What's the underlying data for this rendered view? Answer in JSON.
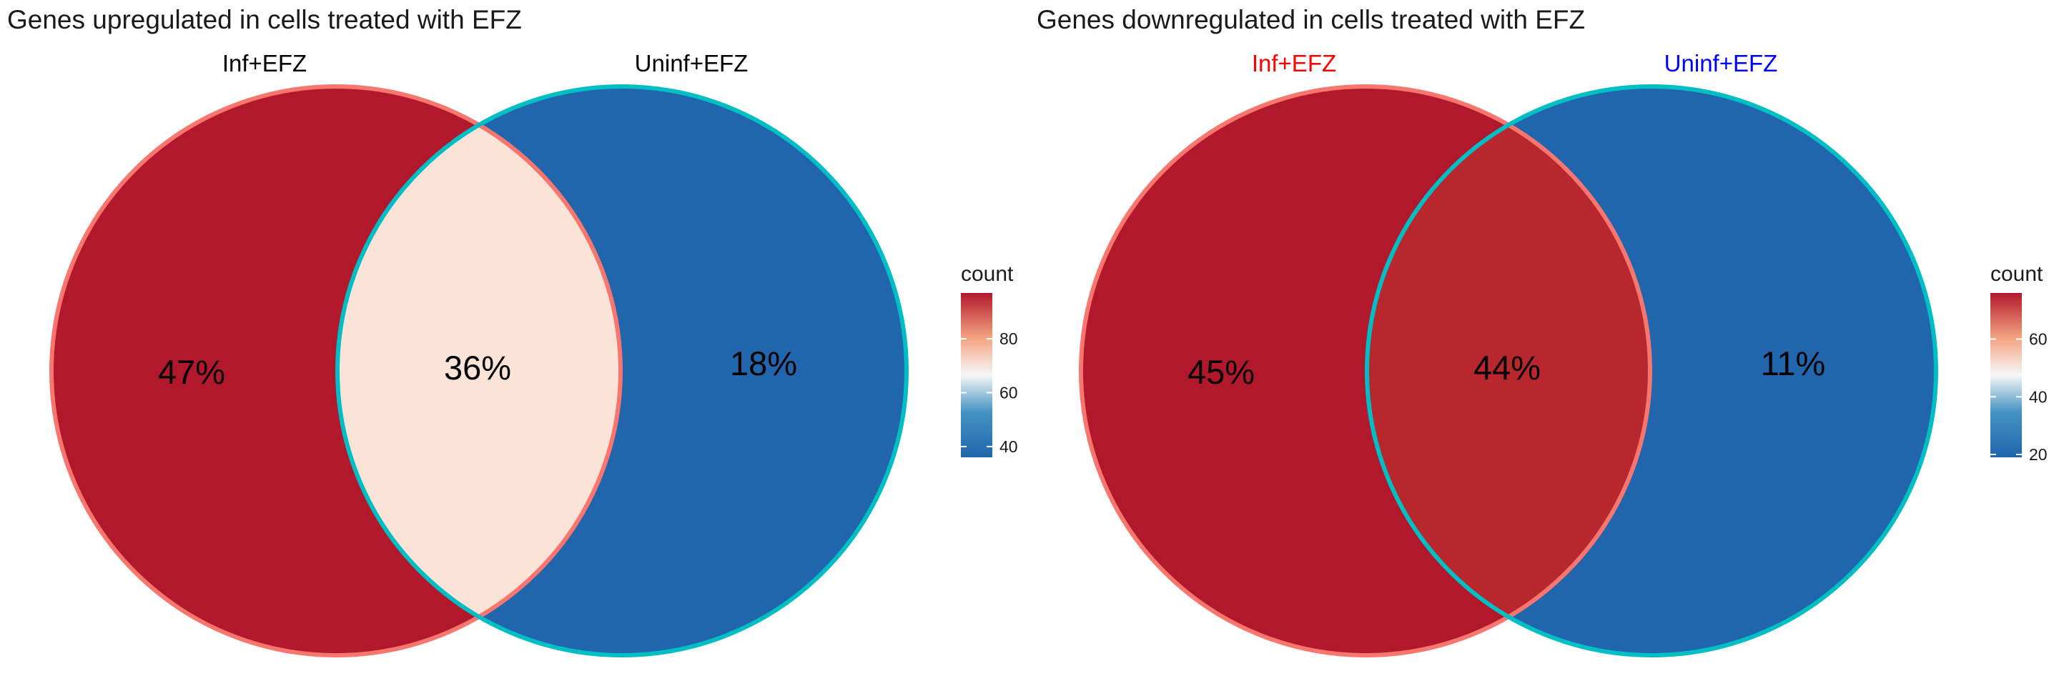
{
  "chart_data": [
    {
      "type": "venn",
      "title": "Genes upregulated in cells treated with EFZ",
      "sets": [
        {
          "name": "Inf+EFZ",
          "label_color": "#000000",
          "border_color": "#F8766D"
        },
        {
          "name": "Uninf+EFZ",
          "label_color": "#000000",
          "border_color": "#00BFC4"
        }
      ],
      "regions": [
        {
          "sets": [
            "Inf+EFZ"
          ],
          "label": "47%",
          "count": 97,
          "fill": "#B2182B"
        },
        {
          "sets": [
            "Inf+EFZ",
            "Uninf+EFZ"
          ],
          "label": "36%",
          "count": 75,
          "fill": "#FBE3D8"
        },
        {
          "sets": [
            "Uninf+EFZ"
          ],
          "label": "18%",
          "count": 36,
          "fill": "#2166AC"
        }
      ],
      "legend": {
        "title": "count",
        "ticks": [
          40,
          60,
          80
        ],
        "tick_labels": [
          "40",
          "60",
          "80"
        ],
        "range": [
          36,
          97
        ],
        "colors": [
          "#2166AC",
          "#F7F7F7",
          "#B2182B"
        ],
        "placement": "right"
      }
    },
    {
      "type": "venn",
      "title": "Genes downregulated in cells treated with EFZ",
      "sets": [
        {
          "name": "Inf+EFZ",
          "label_color": "#FF0000",
          "border_color": "#F8766D"
        },
        {
          "name": "Uninf+EFZ",
          "label_color": "#0000FF",
          "border_color": "#00BFC4"
        }
      ],
      "regions": [
        {
          "sets": [
            "Inf+EFZ"
          ],
          "label": "45%",
          "count": 76,
          "fill": "#B2182B"
        },
        {
          "sets": [
            "Inf+EFZ",
            "Uninf+EFZ"
          ],
          "label": "44%",
          "count": 74,
          "fill": "#B8272E"
        },
        {
          "sets": [
            "Uninf+EFZ"
          ],
          "label": "11%",
          "count": 19,
          "fill": "#2166AC"
        }
      ],
      "legend": {
        "title": "count",
        "ticks": [
          20,
          40,
          60
        ],
        "tick_labels": [
          "20",
          "40",
          "60"
        ],
        "range": [
          19,
          76
        ],
        "colors": [
          "#2166AC",
          "#F7F7F7",
          "#B2182B"
        ],
        "placement": "right"
      }
    }
  ]
}
